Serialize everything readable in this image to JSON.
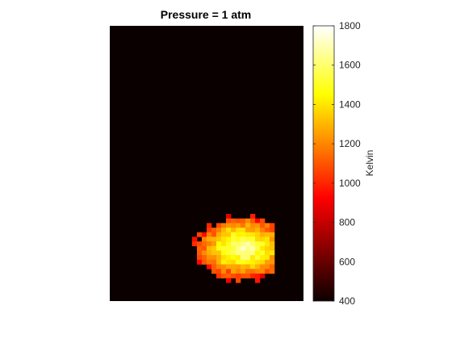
{
  "chart_data": {
    "type": "heatmap",
    "title": "Pressure = 1 atm",
    "xlabel": "",
    "ylabel": "",
    "colormap": "hot",
    "colorbar": {
      "label": "Kelvin",
      "min": 400,
      "max": 1800,
      "ticks": [
        400,
        600,
        800,
        1000,
        1200,
        1400,
        1600,
        1800
      ]
    },
    "background_value": 400,
    "field": {
      "rows": 60,
      "cols": 40,
      "hotspot": {
        "center_col": 27,
        "center_row": 48,
        "radius_cols": 10,
        "radius_rows": 7,
        "peak_value": 1700,
        "edge_value": 900
      }
    },
    "axes_visible": false
  }
}
